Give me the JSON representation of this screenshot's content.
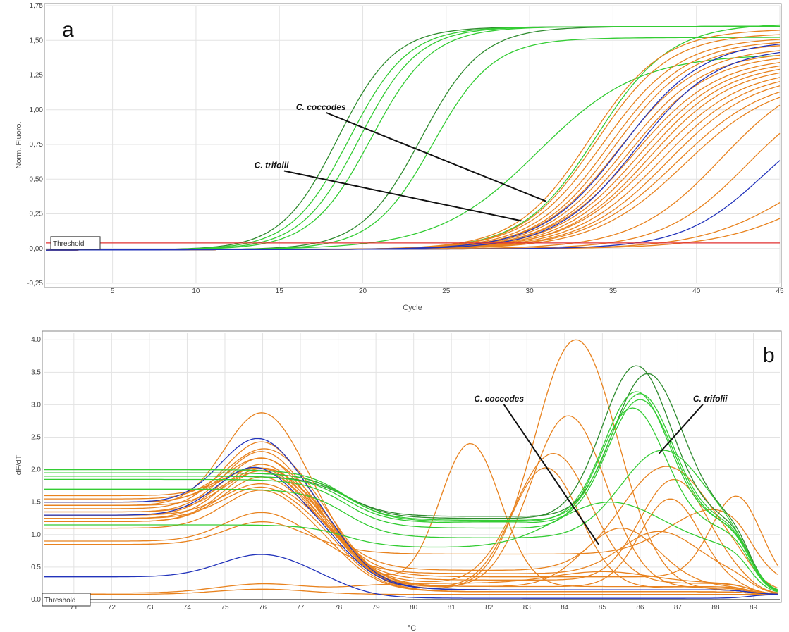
{
  "chart_data": [
    {
      "type": "line",
      "panel_label": "a",
      "xlabel": "Cycle",
      "ylabel": "Norm. Fluoro.",
      "xlim": [
        1,
        45
      ],
      "ylim": [
        -0.25,
        1.75
      ],
      "xticks": [
        5,
        10,
        15,
        20,
        25,
        30,
        35,
        40,
        45
      ],
      "yticks": [
        -0.25,
        0.0,
        0.25,
        0.5,
        0.75,
        1.0,
        1.25,
        1.5,
        1.75
      ],
      "ytick_labels": [
        "-0,25",
        "0,00",
        "0,25",
        "0,50",
        "0,75",
        "1,00",
        "1,25",
        "1,50",
        "1,75"
      ],
      "grid": true,
      "threshold": {
        "label": "Threshold",
        "value": 0.04,
        "color": "#e03030"
      },
      "annotations": [
        {
          "label": "C. coccodes",
          "text_x": 16.0,
          "text_y": 1.0,
          "arrow_x": 31.0,
          "arrow_y": 0.34
        },
        {
          "label": "C. trifolii",
          "text_x": 13.5,
          "text_y": 0.58,
          "arrow_x": 29.5,
          "arrow_y": 0.2
        }
      ],
      "series_groups": [
        {
          "color": "#2e8b2e",
          "curves": [
            {
              "midpoint": 18.5,
              "slope": 1.7,
              "top": 1.6
            },
            {
              "midpoint": 23.5,
              "slope": 1.8,
              "top": 1.6
            }
          ]
        },
        {
          "color": "#33cc33",
          "curves": [
            {
              "midpoint": 19.2,
              "slope": 1.75,
              "top": 1.6
            },
            {
              "midpoint": 19.8,
              "slope": 1.75,
              "top": 1.6
            },
            {
              "midpoint": 20.5,
              "slope": 1.8,
              "top": 1.6
            },
            {
              "midpoint": 24.2,
              "slope": 1.8,
              "top": 1.52
            },
            {
              "midpoint": 30.5,
              "slope": 3.0,
              "top": 1.4
            },
            {
              "midpoint": 34.0,
              "slope": 2.2,
              "top": 1.62
            }
          ]
        },
        {
          "color": "#e8821e",
          "curves": [
            {
              "midpoint": 33.6,
              "slope": 2.2,
              "top": 1.58
            },
            {
              "midpoint": 34.0,
              "slope": 2.2,
              "top": 1.55
            },
            {
              "midpoint": 34.4,
              "slope": 2.3,
              "top": 1.52
            },
            {
              "midpoint": 34.8,
              "slope": 2.3,
              "top": 1.5
            },
            {
              "midpoint": 35.1,
              "slope": 2.3,
              "top": 1.48
            },
            {
              "midpoint": 35.4,
              "slope": 2.4,
              "top": 1.45
            },
            {
              "midpoint": 35.7,
              "slope": 2.4,
              "top": 1.42
            },
            {
              "midpoint": 36.0,
              "slope": 2.4,
              "top": 1.4
            },
            {
              "midpoint": 36.3,
              "slope": 2.5,
              "top": 1.38
            },
            {
              "midpoint": 36.6,
              "slope": 2.5,
              "top": 1.36
            },
            {
              "midpoint": 36.9,
              "slope": 2.5,
              "top": 1.34
            },
            {
              "midpoint": 37.2,
              "slope": 2.5,
              "top": 1.32
            },
            {
              "midpoint": 37.5,
              "slope": 2.6,
              "top": 1.3
            },
            {
              "midpoint": 37.9,
              "slope": 2.6,
              "top": 1.28
            },
            {
              "midpoint": 38.3,
              "slope": 2.6,
              "top": 1.26
            },
            {
              "midpoint": 38.8,
              "slope": 2.7,
              "top": 1.24
            },
            {
              "midpoint": 39.3,
              "slope": 2.7,
              "top": 1.22
            },
            {
              "midpoint": 41.5,
              "slope": 2.6,
              "top": 1.3
            },
            {
              "midpoint": 43.0,
              "slope": 2.5,
              "top": 1.2
            },
            {
              "midpoint": 46.0,
              "slope": 2.8,
              "top": 0.8
            },
            {
              "midpoint": 48.0,
              "slope": 3.0,
              "top": 0.8
            }
          ]
        },
        {
          "color": "#2233bb",
          "curves": [
            {
              "midpoint": 35.6,
              "slope": 2.4,
              "top": 1.5
            },
            {
              "midpoint": 36.4,
              "slope": 2.4,
              "top": 1.45
            },
            {
              "midpoint": 44.0,
              "slope": 2.4,
              "top": 1.05
            }
          ]
        }
      ]
    },
    {
      "type": "line",
      "panel_label": "b",
      "xlabel": "°C",
      "ylabel": "dF/dT",
      "xlim": [
        70.2,
        89.7
      ],
      "ylim": [
        0,
        4.1
      ],
      "xticks": [
        71,
        72,
        73,
        74,
        75,
        76,
        77,
        78,
        79,
        80,
        81,
        82,
        83,
        84,
        85,
        86,
        87,
        88,
        89
      ],
      "yticks": [
        0.0,
        0.5,
        1.0,
        1.5,
        2.0,
        2.5,
        3.0,
        3.5,
        4.0
      ],
      "ytick_labels": [
        "0.0",
        "0.5",
        "1.0",
        "1.5",
        "2.0",
        "2.5",
        "3.0",
        "3.5",
        "4.0"
      ],
      "grid": true,
      "threshold": {
        "label": "Threshold",
        "value": 0.0,
        "color": "#333333"
      },
      "annotations": [
        {
          "label": "C. coccodes",
          "text_x": 81.6,
          "text_y": 3.05,
          "arrow_x": 84.9,
          "arrow_y": 0.85
        },
        {
          "label": "C. trifolii",
          "text_x": 87.4,
          "text_y": 3.05,
          "arrow_x": 86.5,
          "arrow_y": 2.25
        }
      ],
      "series_groups": [
        {
          "color": "#e8821e",
          "curves": [
            {
              "base": 1.45,
              "base_end": 0.12,
              "peaks": [
                [
                  76.0,
                  1.45,
                  1.0
                ]
              ]
            },
            {
              "base": 1.4,
              "base_end": 0.15,
              "peaks": [
                [
                  76.0,
                  1.05,
                  1.0
                ],
                [
                  84.3,
                  3.85,
                  1.1
                ]
              ]
            },
            {
              "base": 1.35,
              "base_end": 0.18,
              "peaks": [
                [
                  76.0,
                  0.95,
                  1.0
                ],
                [
                  84.1,
                  2.65,
                  1.0
                ]
              ]
            },
            {
              "base": 1.3,
              "base_end": 0.2,
              "peaks": [
                [
                  76.0,
                  0.9,
                  1.0
                ],
                [
                  81.5,
                  2.2,
                  0.8
                ]
              ]
            },
            {
              "base": 1.25,
              "base_end": 0.25,
              "peaks": [
                [
                  76.0,
                  0.85,
                  1.0
                ],
                [
                  83.7,
                  2.0,
                  1.0
                ]
              ]
            },
            {
              "base": 1.55,
              "base_end": 0.18,
              "peaks": [
                [
                  76.1,
                  0.8,
                  1.0
                ],
                [
                  83.5,
                  1.85,
                  0.9
                ]
              ]
            },
            {
              "base": 1.2,
              "base_end": 0.3,
              "peaks": [
                [
                  76.0,
                  0.8,
                  1.0
                ],
                [
                  86.9,
                  1.55,
                  0.9
                ]
              ]
            },
            {
              "base": 1.5,
              "base_end": 0.2,
              "peaks": [
                [
                  76.0,
                  0.7,
                  1.0
                ],
                [
                  86.8,
                  1.35,
                  0.8
                ]
              ]
            },
            {
              "base": 1.2,
              "base_end": 0.45,
              "peaks": [
                [
                  76.0,
                  0.7,
                  1.0
                ],
                [
                  86.7,
                  1.6,
                  1.2
                ]
              ]
            },
            {
              "base": 1.35,
              "base_end": 0.15,
              "peaks": [
                [
                  76.0,
                  0.65,
                  1.0
                ]
              ]
            },
            {
              "base": 1.45,
              "base_end": 0.12,
              "peaks": [
                [
                  76.1,
                  0.6,
                  1.0
                ]
              ]
            },
            {
              "base": 1.5,
              "base_end": 0.2,
              "peaks": [
                [
                  75.9,
                  0.55,
                  1.0
                ],
                [
                  85.5,
                  0.9,
                  1.0
                ]
              ]
            },
            {
              "base": 1.1,
              "base_end": 0.12,
              "peaks": [
                [
                  76.0,
                  0.6,
                  1.0
                ]
              ]
            },
            {
              "base": 1.3,
              "base_end": 0.35,
              "peaks": [
                [
                  76.0,
                  0.5,
                  1.0
                ],
                [
                  88.6,
                  1.3,
                  0.7
                ]
              ]
            },
            {
              "base": 1.25,
              "base_end": 0.12,
              "peaks": [
                [
                  76.0,
                  0.5,
                  1.0
                ]
              ]
            },
            {
              "base": 0.9,
              "base_end": 0.4,
              "peaks": [
                [
                  76.0,
                  0.45,
                  1.0
                ],
                [
                  86.5,
                  0.65,
                  1.0
                ]
              ]
            },
            {
              "base": 1.6,
              "base_end": 0.15,
              "peaks": [
                [
                  76.0,
                  0.45,
                  1.0
                ]
              ]
            },
            {
              "base": 0.85,
              "base_end": 0.7,
              "peaks": [
                [
                  76.0,
                  0.35,
                  1.0
                ],
                [
                  88.0,
                  0.7,
                  1.2
                ]
              ]
            },
            {
              "base": 0.1,
              "base_end": 0.25,
              "peaks": [
                [
                  76.0,
                  0.14,
                  1.2
                ],
                [
                  85.0,
                  0.18,
                  1.3
                ]
              ]
            },
            {
              "base": 0.08,
              "base_end": 0.08,
              "peaks": [
                [
                  76.0,
                  0.08,
                  1.2
                ]
              ]
            }
          ]
        },
        {
          "color": "#2233bb",
          "curves": [
            {
              "base": 1.5,
              "base_end": 0.15,
              "peaks": [
                [
                  75.9,
                  1.0,
                  1.0
                ]
              ]
            },
            {
              "base": 1.3,
              "base_end": 0.15,
              "peaks": [
                [
                  75.8,
                  0.75,
                  1.0
                ]
              ]
            },
            {
              "base": 0.35,
              "base_end": 0.02,
              "peaks": [
                [
                  76.0,
                  0.35,
                  1.1
                ]
              ]
            }
          ]
        },
        {
          "color": "#2e8b2e",
          "curves": [
            {
              "base": 1.95,
              "base_end": 1.25,
              "peaks": [
                [
                  85.9,
                  2.35,
                  0.9
                ]
              ]
            },
            {
              "base": 1.9,
              "base_end": 1.28,
              "peaks": [
                [
                  86.2,
                  2.2,
                  0.9
                ]
              ]
            }
          ]
        },
        {
          "color": "#33cc33",
          "curves": [
            {
              "base": 2.0,
              "base_end": 1.2,
              "peaks": [
                [
                  85.9,
                  2.0,
                  0.85
                ]
              ]
            },
            {
              "base": 1.95,
              "base_end": 1.22,
              "peaks": [
                [
                  86.0,
                  1.95,
                  0.85
                ]
              ]
            },
            {
              "base": 1.9,
              "base_end": 1.18,
              "peaks": [
                [
                  86.0,
                  1.9,
                  0.85
                ]
              ]
            },
            {
              "base": 1.85,
              "base_end": 1.1,
              "peaks": [
                [
                  85.8,
                  1.85,
                  0.85
                ]
              ]
            },
            {
              "base": 1.7,
              "base_end": 0.95,
              "peaks": [
                [
                  86.6,
                  1.35,
                  1.1
                ]
              ]
            },
            {
              "base": 1.15,
              "base_end": 0.8,
              "peaks": [
                [
                  85.2,
                  0.7,
                  1.4
                ]
              ]
            }
          ]
        }
      ]
    }
  ]
}
